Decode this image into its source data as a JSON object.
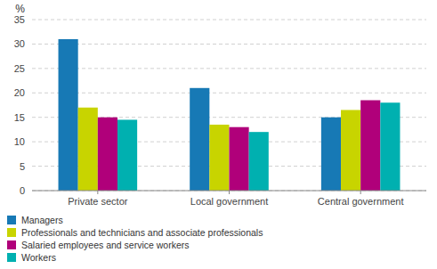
{
  "chart_data": {
    "type": "bar",
    "ylabel": "%",
    "categories": [
      "Private sector",
      "Local government",
      "Central government"
    ],
    "series": [
      {
        "name": "Managers",
        "color": "#1779b5",
        "values": [
          31,
          21,
          15
        ]
      },
      {
        "name": "Professionals and technicians and associate professionals",
        "color": "#c8d400",
        "values": [
          17,
          13.5,
          16.5
        ]
      },
      {
        "name": "Salaried employees and service workers",
        "color": "#b0007a",
        "values": [
          15,
          13,
          18.5
        ]
      },
      {
        "name": "Workers",
        "color": "#00b0b0",
        "values": [
          14.5,
          12,
          18
        ]
      }
    ],
    "ylim": [
      0,
      35
    ],
    "yticks": [
      0,
      5,
      10,
      15,
      20,
      25,
      30,
      35
    ],
    "grid": true,
    "legend": "bottom"
  }
}
